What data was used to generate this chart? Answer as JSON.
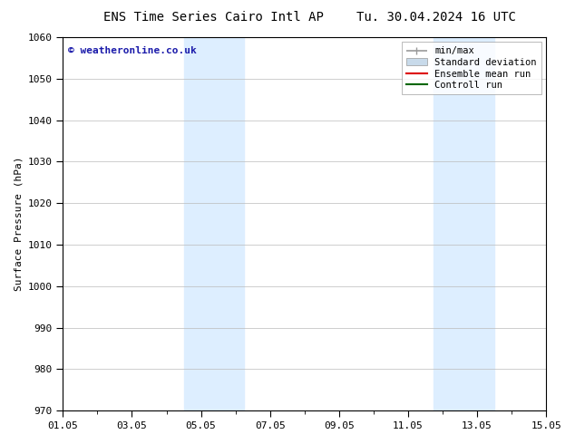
{
  "title_left": "ENS Time Series Cairo Intl AP",
  "title_right": "Tu. 30.04.2024 16 UTC",
  "ylabel": "Surface Pressure (hPa)",
  "ylim": [
    970,
    1060
  ],
  "yticks": [
    970,
    980,
    990,
    1000,
    1010,
    1020,
    1030,
    1040,
    1050,
    1060
  ],
  "xtick_labels": [
    "01.05",
    "03.05",
    "05.05",
    "07.05",
    "09.05",
    "11.05",
    "13.05",
    "15.05"
  ],
  "xtick_positions": [
    0,
    2,
    4,
    6,
    8,
    10,
    12,
    14
  ],
  "x_min": 0,
  "x_max": 14,
  "shaded_bands": [
    {
      "x_start": 3.5,
      "x_end": 5.25
    },
    {
      "x_start": 10.75,
      "x_end": 12.5
    }
  ],
  "shaded_color": "#ddeeff",
  "watermark": "© weatheronline.co.uk",
  "watermark_color": "#1a1aaa",
  "legend_entries": [
    {
      "label": "min/max",
      "color": "#999999",
      "lw": 1.2
    },
    {
      "label": "Standard deviation",
      "color": "#c8daea",
      "lw": 6
    },
    {
      "label": "Ensemble mean run",
      "color": "#dd0000",
      "lw": 1.5
    },
    {
      "label": "Controll run",
      "color": "#006600",
      "lw": 1.5
    }
  ],
  "bg_color": "#ffffff",
  "grid_color": "#bbbbbb",
  "title_fontsize": 10,
  "axis_label_fontsize": 8,
  "tick_fontsize": 8,
  "legend_fontsize": 7.5,
  "watermark_fontsize": 8
}
